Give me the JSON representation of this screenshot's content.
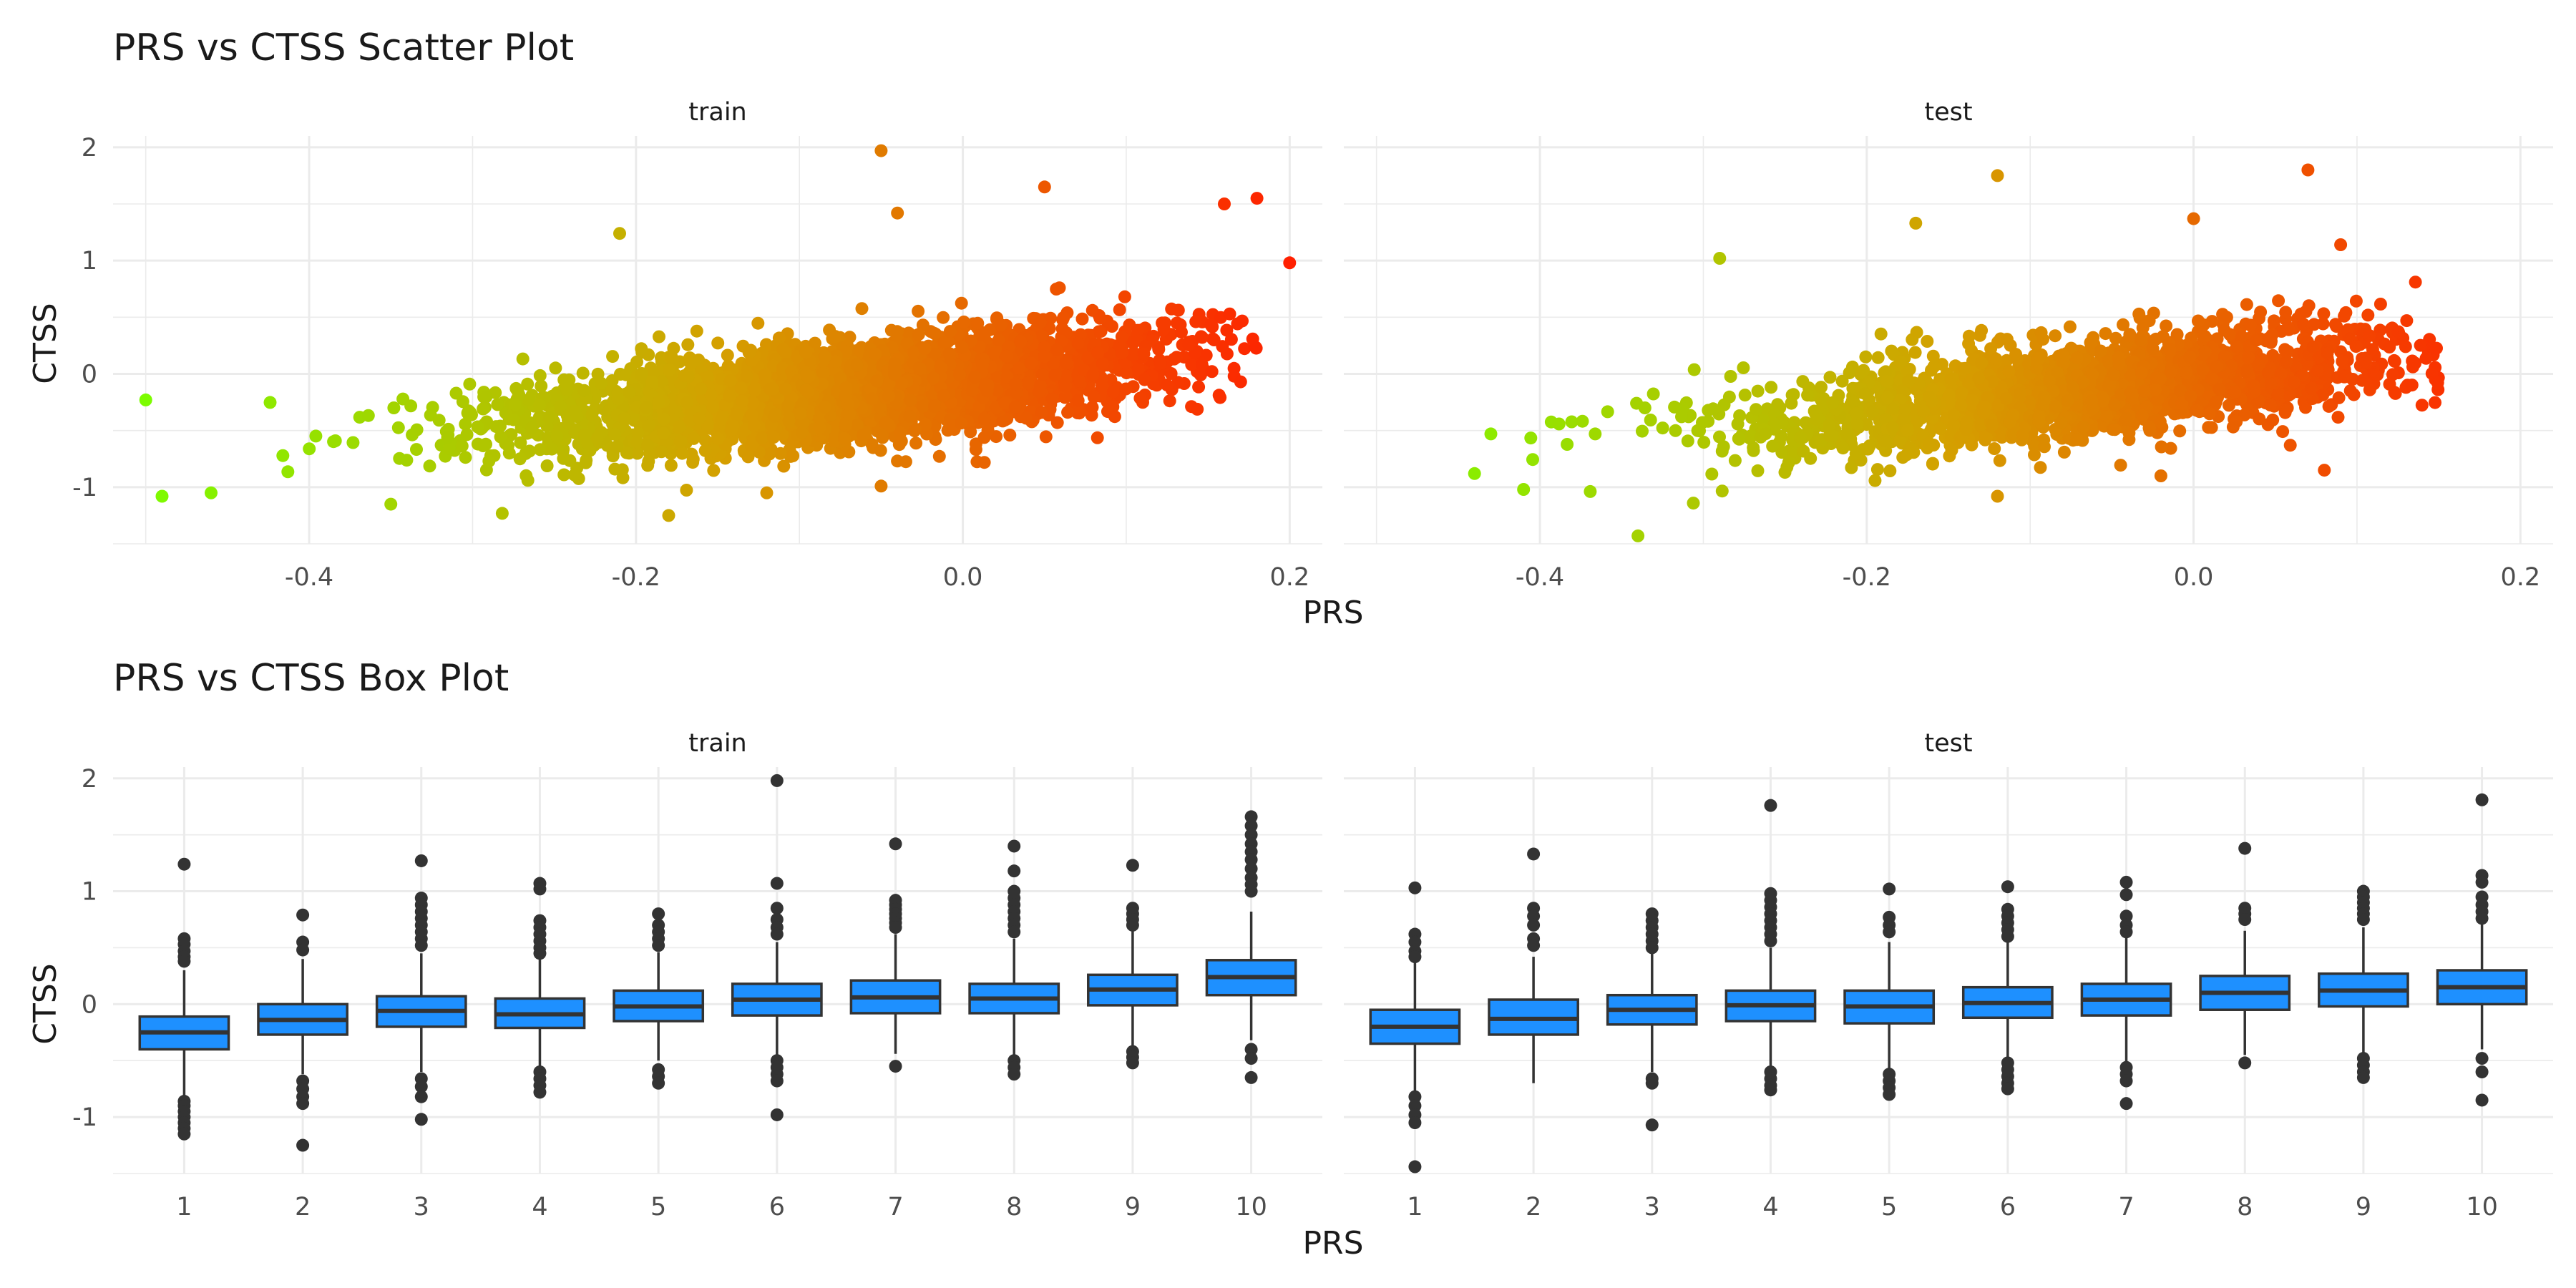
{
  "chart_data": [
    {
      "type": "scatter",
      "title": "PRS vs CTSS Scatter Plot",
      "xlabel": "PRS",
      "ylabel": "CTSS",
      "xlim": [
        -0.52,
        0.22
      ],
      "ylim": [
        -1.5,
        2.1
      ],
      "x_ticks": [
        "-0.4",
        "-0.2",
        "0.0",
        "0.2"
      ],
      "x_tick_values": [
        -0.4,
        -0.2,
        0.0,
        0.2
      ],
      "y_ticks": [
        "-1",
        "0",
        "1",
        "2"
      ],
      "y_tick_values": [
        -1,
        0,
        1,
        2
      ],
      "grid": true,
      "color_gradient": {
        "low": "#7CFC00",
        "mid": "#d4a000",
        "high": "#ff2000",
        "low_x": -0.5,
        "high_x": 0.2
      },
      "trend": {
        "slope": 1.5,
        "intercept": -0.04,
        "sd": 0.22
      },
      "facets": [
        {
          "label": "train",
          "point_count": 3500,
          "x_mean": -0.07,
          "x_sd": 0.1,
          "x_range": [
            -0.45,
            0.18
          ],
          "outliers": [
            {
              "x": -0.5,
              "y": -0.23
            },
            {
              "x": -0.49,
              "y": -1.08
            },
            {
              "x": -0.46,
              "y": -1.05
            },
            {
              "x": -0.05,
              "y": 1.97
            },
            {
              "x": 0.2,
              "y": 0.98
            },
            {
              "x": 0.18,
              "y": 1.55
            },
            {
              "x": 0.05,
              "y": 1.65
            },
            {
              "x": -0.18,
              "y": -1.25
            },
            {
              "x": -0.21,
              "y": 1.24
            },
            {
              "x": -0.04,
              "y": 1.42
            },
            {
              "x": -0.05,
              "y": -0.99
            },
            {
              "x": -0.35,
              "y": -1.15
            },
            {
              "x": 0.17,
              "y": -0.07
            },
            {
              "x": -0.12,
              "y": -1.05
            },
            {
              "x": 0.16,
              "y": 1.5
            }
          ]
        },
        {
          "label": "test",
          "point_count": 2000,
          "x_mean": -0.07,
          "x_sd": 0.1,
          "x_range": [
            -0.42,
            0.15
          ],
          "outliers": [
            {
              "x": -0.44,
              "y": -0.88
            },
            {
              "x": -0.41,
              "y": -1.02
            },
            {
              "x": -0.34,
              "y": -1.43
            },
            {
              "x": 0.07,
              "y": 1.8
            },
            {
              "x": -0.12,
              "y": 1.75
            },
            {
              "x": -0.17,
              "y": 1.33
            },
            {
              "x": 0.0,
              "y": 1.37
            },
            {
              "x": -0.29,
              "y": 1.02
            },
            {
              "x": -0.12,
              "y": -1.08
            },
            {
              "x": 0.08,
              "y": -0.85
            },
            {
              "x": -0.02,
              "y": -0.9
            },
            {
              "x": 0.09,
              "y": 1.14
            },
            {
              "x": -0.43,
              "y": -0.53
            }
          ]
        }
      ]
    },
    {
      "type": "box",
      "title": "PRS vs CTSS Box Plot",
      "xlabel": "PRS",
      "ylabel": "CTSS",
      "categories": [
        "1",
        "2",
        "3",
        "4",
        "5",
        "6",
        "7",
        "8",
        "9",
        "10"
      ],
      "ylim": [
        -1.5,
        2.1
      ],
      "y_ticks": [
        "-1",
        "0",
        "1",
        "2"
      ],
      "y_tick_values": [
        -1,
        0,
        1,
        2
      ],
      "grid": true,
      "box_color": "#1e90ff",
      "facets": [
        {
          "label": "train",
          "boxes": [
            {
              "q1": -0.4,
              "median": -0.25,
              "q3": -0.11,
              "lower": -0.82,
              "upper": 0.3,
              "outliers": [
                1.24,
                0.58,
                0.53,
                0.47,
                0.42,
                0.38,
                -0.86,
                -0.9,
                -0.95,
                -1.0,
                -1.05,
                -1.1,
                -1.15
              ]
            },
            {
              "q1": -0.27,
              "median": -0.14,
              "q3": 0.0,
              "lower": -0.62,
              "upper": 0.4,
              "outliers": [
                0.79,
                0.55,
                0.48,
                -0.68,
                -0.75,
                -0.82,
                -0.88,
                -1.25
              ]
            },
            {
              "q1": -0.2,
              "median": -0.06,
              "q3": 0.07,
              "lower": -0.6,
              "upper": 0.45,
              "outliers": [
                1.27,
                0.94,
                0.88,
                0.82,
                0.76,
                0.7,
                0.64,
                0.58,
                0.52,
                -0.66,
                -0.73,
                -0.82,
                -1.02
              ]
            },
            {
              "q1": -0.21,
              "median": -0.09,
              "q3": 0.05,
              "lower": -0.55,
              "upper": 0.42,
              "outliers": [
                1.07,
                1.02,
                0.74,
                0.68,
                0.62,
                0.56,
                0.5,
                0.45,
                -0.6,
                -0.66,
                -0.72,
                -0.78
              ]
            },
            {
              "q1": -0.15,
              "median": -0.02,
              "q3": 0.12,
              "lower": -0.5,
              "upper": 0.46,
              "outliers": [
                0.8,
                0.7,
                0.64,
                0.58,
                0.52,
                -0.58,
                -0.64,
                -0.7
              ]
            },
            {
              "q1": -0.1,
              "median": 0.04,
              "q3": 0.18,
              "lower": -0.48,
              "upper": 0.55,
              "outliers": [
                1.98,
                1.07,
                0.85,
                0.75,
                0.68,
                0.62,
                -0.5,
                -0.56,
                -0.62,
                -0.68,
                -0.98
              ]
            },
            {
              "q1": -0.08,
              "median": 0.06,
              "q3": 0.21,
              "lower": -0.44,
              "upper": 0.62,
              "outliers": [
                1.42,
                0.92,
                0.88,
                0.84,
                0.8,
                0.76,
                0.72,
                0.68,
                -0.55
              ]
            },
            {
              "q1": -0.08,
              "median": 0.05,
              "q3": 0.18,
              "lower": -0.45,
              "upper": 0.58,
              "outliers": [
                1.4,
                1.18,
                1.0,
                0.94,
                0.88,
                0.82,
                0.76,
                0.7,
                0.64,
                -0.5,
                -0.56,
                -0.62
              ]
            },
            {
              "q1": -0.01,
              "median": 0.13,
              "q3": 0.26,
              "lower": -0.38,
              "upper": 0.66,
              "outliers": [
                1.23,
                0.85,
                0.8,
                0.75,
                0.7,
                -0.42,
                -0.47,
                -0.52
              ]
            },
            {
              "q1": 0.08,
              "median": 0.24,
              "q3": 0.39,
              "lower": -0.32,
              "upper": 0.82,
              "outliers": [
                1.66,
                1.58,
                1.5,
                1.42,
                1.35,
                1.28,
                1.2,
                1.12,
                1.06,
                1.0,
                -0.4,
                -0.48,
                -0.65
              ]
            }
          ]
        },
        {
          "label": "test",
          "boxes": [
            {
              "q1": -0.35,
              "median": -0.2,
              "q3": -0.05,
              "lower": -0.78,
              "upper": 0.4,
              "outliers": [
                1.03,
                0.62,
                0.55,
                0.47,
                0.42,
                -0.82,
                -0.9,
                -0.98,
                -1.05,
                -1.44
              ]
            },
            {
              "q1": -0.27,
              "median": -0.13,
              "q3": 0.04,
              "lower": -0.7,
              "upper": 0.42,
              "outliers": [
                1.33,
                0.85,
                0.78,
                0.7,
                0.58,
                0.52
              ]
            },
            {
              "q1": -0.18,
              "median": -0.05,
              "q3": 0.08,
              "lower": -0.6,
              "upper": 0.45,
              "outliers": [
                0.8,
                0.74,
                0.68,
                0.62,
                0.56,
                0.5,
                -0.66,
                -0.7,
                -1.07
              ]
            },
            {
              "q1": -0.15,
              "median": -0.01,
              "q3": 0.12,
              "lower": -0.55,
              "upper": 0.5,
              "outliers": [
                1.76,
                0.98,
                0.92,
                0.86,
                0.8,
                0.74,
                0.68,
                0.62,
                0.56,
                -0.6,
                -0.66,
                -0.72,
                -0.76
              ]
            },
            {
              "q1": -0.17,
              "median": -0.02,
              "q3": 0.12,
              "lower": -0.58,
              "upper": 0.55,
              "outliers": [
                1.02,
                0.77,
                0.7,
                0.64,
                -0.62,
                -0.68,
                -0.74,
                -0.8
              ]
            },
            {
              "q1": -0.12,
              "median": 0.01,
              "q3": 0.15,
              "lower": -0.5,
              "upper": 0.55,
              "outliers": [
                1.04,
                0.84,
                0.78,
                0.72,
                0.66,
                0.6,
                -0.52,
                -0.58,
                -0.64,
                -0.7,
                -0.75
              ]
            },
            {
              "q1": -0.1,
              "median": 0.04,
              "q3": 0.18,
              "lower": -0.52,
              "upper": 0.6,
              "outliers": [
                1.08,
                0.97,
                0.78,
                0.7,
                0.64,
                -0.56,
                -0.62,
                -0.68,
                -0.88
              ]
            },
            {
              "q1": -0.05,
              "median": 0.1,
              "q3": 0.25,
              "lower": -0.45,
              "upper": 0.65,
              "outliers": [
                1.38,
                0.85,
                0.8,
                0.75,
                -0.52
              ]
            },
            {
              "q1": -0.02,
              "median": 0.12,
              "q3": 0.27,
              "lower": -0.45,
              "upper": 0.68,
              "outliers": [
                1.0,
                0.95,
                0.9,
                0.85,
                0.8,
                0.75,
                -0.48,
                -0.54,
                -0.6,
                -0.65
              ]
            },
            {
              "q1": 0.0,
              "median": 0.15,
              "q3": 0.3,
              "lower": -0.4,
              "upper": 0.72,
              "outliers": [
                1.81,
                1.14,
                1.08,
                0.95,
                0.88,
                0.82,
                0.76,
                -0.48,
                -0.6,
                -0.85
              ]
            }
          ]
        }
      ]
    }
  ]
}
